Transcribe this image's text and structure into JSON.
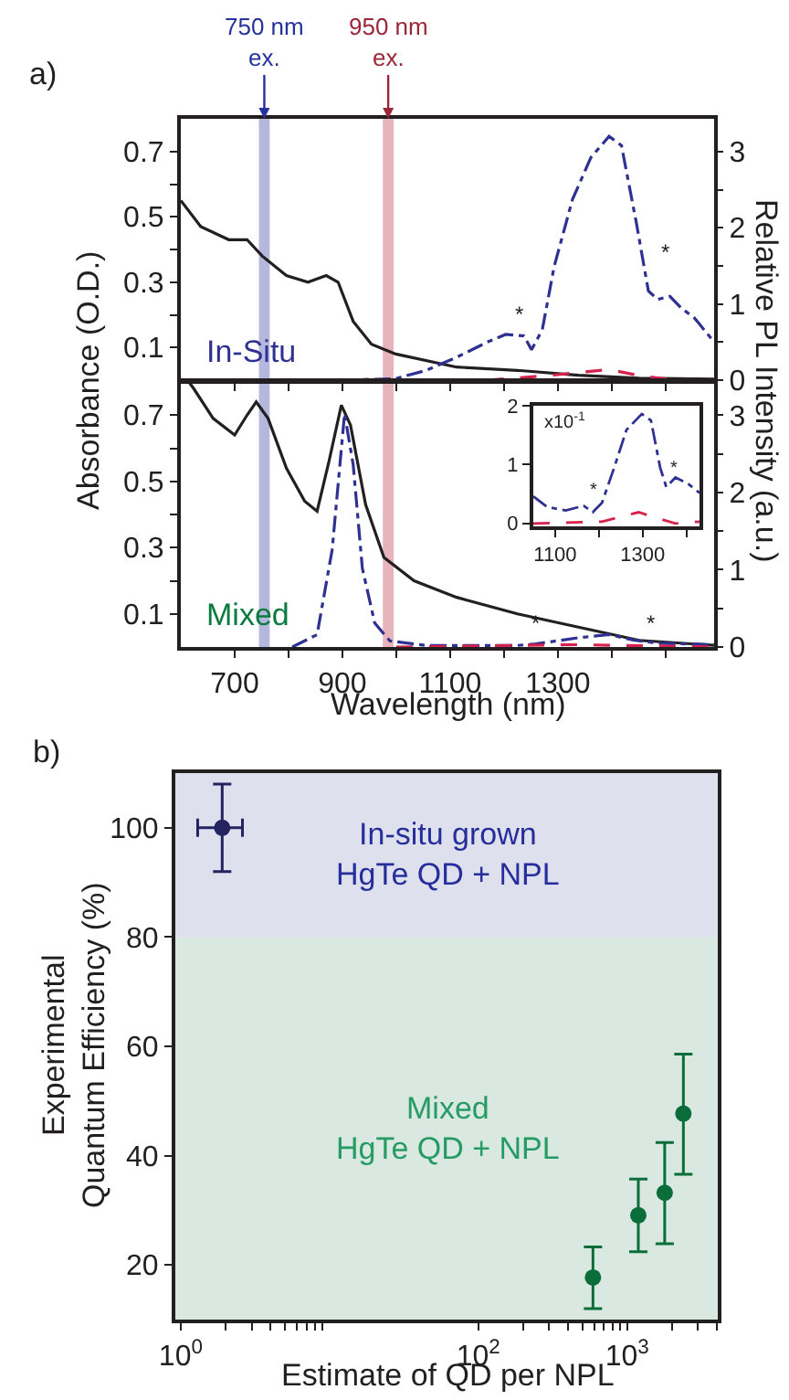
{
  "chart_data": [
    {
      "type": "line",
      "ylabel": "Absorbance (O.D.)",
      "y2label": "Relative PL Intensity (a.u.)",
      "tick_labels": "y",
      "annotations": [
        "a)",
        "In-Situ",
        "*",
        "*"
      ],
      "xlim": [
        600,
        1590
      ],
      "xticks": [
        700,
        {
          "value": 800,
          "label": null
        },
        900,
        {
          "value": 1000,
          "label": null
        },
        1100,
        {
          "value": 1200,
          "label": null
        },
        1300,
        {
          "value": 1400,
          "label": null
        },
        {
          "value": 1500,
          "label": null
        }
      ],
      "ylim": [
        0,
        0.8
      ],
      "yticks": [
        0.1,
        {
          "value": 0.2,
          "label": null
        },
        0.3,
        {
          "value": 0.4,
          "label": null
        },
        0.5,
        {
          "value": 0.6,
          "label": null
        },
        0.7
      ],
      "y2lim": [
        0,
        3.43
      ],
      "y2ticks": [
        0,
        {
          "value": 0.5,
          "label": null
        },
        1,
        {
          "value": 1.5,
          "label": null
        },
        2,
        {
          "value": 2.5,
          "label": null
        },
        3
      ],
      "bands": [
        {
          "axis": "x",
          "from": 745,
          "to": 765,
          "color": "#b4b8dc",
          "label": "750 nm\nex."
        },
        {
          "axis": "x",
          "from": 975,
          "to": 995,
          "color": "#e8b4bc",
          "label": "950 nm\nex."
        }
      ],
      "series": [
        {
          "color": "#231f20",
          "line_style": "solid",
          "x": [
            600,
            637,
            689,
            723,
            751,
            796,
            836,
            870,
            892,
            920,
            954,
            999,
            1112,
            1225,
            1338,
            1451,
            1590
          ],
          "values": [
            0.55,
            0.47,
            0.43,
            0.43,
            0.38,
            0.32,
            0.3,
            0.32,
            0.3,
            0.18,
            0.11,
            0.08,
            0.04,
            0.03,
            0.015,
            0.006,
            0.003
          ]
        },
        {
          "color": "#2e3192",
          "axis": "y2",
          "line_style": "dashdot",
          "x": [
            898,
            999,
            1056,
            1112,
            1169,
            1203,
            1237,
            1251,
            1271,
            1293,
            1327,
            1361,
            1395,
            1418,
            1446,
            1468,
            1485,
            1508,
            1530,
            1553,
            1590
          ],
          "values": [
            0,
            0.02,
            0.13,
            0.3,
            0.5,
            0.6,
            0.58,
            0.4,
            0.66,
            1.49,
            2.37,
            2.92,
            3.2,
            3.08,
            2.05,
            1.17,
            1.06,
            1.1,
            0.94,
            0.82,
            0.5
          ]
        },
        {
          "color": "#d6204d",
          "axis": "y2",
          "line_style": "dashed",
          "x": [
            1169,
            1282,
            1395,
            1451,
            1508,
            1590
          ],
          "values": [
            0,
            0.06,
            0.14,
            0.06,
            0.01,
            0
          ]
        }
      ]
    },
    {
      "type": "line",
      "xlabel": "Wavelength (nm)",
      "annotations": [
        "Mixed",
        "*",
        "*"
      ],
      "xlim": [
        600,
        1590
      ],
      "xticks": [
        700,
        {
          "value": 800,
          "label": null
        },
        900,
        {
          "value": 1000,
          "label": null
        },
        1100,
        {
          "value": 1200,
          "label": null
        },
        1300,
        {
          "value": 1400,
          "label": null
        },
        {
          "value": 1500,
          "label": null
        }
      ],
      "ylim": [
        0,
        0.8
      ],
      "yticks": [
        0.1,
        {
          "value": 0.2,
          "label": null
        },
        0.3,
        {
          "value": 0.4,
          "label": null
        },
        0.5,
        {
          "value": 0.6,
          "label": null
        },
        0.7
      ],
      "y2lim": [
        0,
        3.43
      ],
      "y2ticks": [
        0,
        {
          "value": 0.5,
          "label": null
        },
        1,
        {
          "value": 1.5,
          "label": null
        },
        2,
        {
          "value": 2.5,
          "label": null
        },
        3
      ],
      "bands": [
        {
          "axis": "x",
          "from": 745,
          "to": 765,
          "color": "#b4b8dc"
        },
        {
          "axis": "x",
          "from": 975,
          "to": 995,
          "color": "#e8b4bc"
        }
      ],
      "series": [
        {
          "color": "#231f20",
          "line_style": "solid",
          "x": [
            615,
            624,
            660,
            700,
            723,
            740,
            762,
            796,
            830,
            853,
            875,
            898,
            915,
            943,
            977,
            1033,
            1112,
            1225,
            1338,
            1451,
            1590
          ],
          "values": [
            0.8,
            0.78,
            0.69,
            0.64,
            0.7,
            0.74,
            0.69,
            0.54,
            0.44,
            0.41,
            0.56,
            0.73,
            0.67,
            0.43,
            0.27,
            0.2,
            0.15,
            0.1,
            0.06,
            0.02,
            0.005
          ]
        },
        {
          "color": "#2e3192",
          "axis": "y2",
          "line_style": "dashdot",
          "x": [
            807,
            853,
            881,
            904,
            920,
            937,
            960,
            988,
            1056,
            1225,
            1259,
            1338,
            1395,
            1440,
            1485,
            1590
          ],
          "values": [
            0,
            0.16,
            1.26,
            3.02,
            2.36,
            1.02,
            0.31,
            0.08,
            0.02,
            0.02,
            0.04,
            0.12,
            0.16,
            0.09,
            0.05,
            0.03
          ]
        },
        {
          "color": "#d6204d",
          "axis": "y2",
          "line_style": "dashed",
          "x": [
            1000,
            1340,
            1590
          ],
          "values": [
            0,
            0.03,
            0
          ]
        }
      ]
    },
    {
      "type": "line",
      "annotations": [
        "x10$^{-1}$",
        "*",
        "*"
      ],
      "xlim": [
        1050,
        1430
      ],
      "xticks": [
        1100,
        {
          "value": 1200,
          "label": null
        },
        1300,
        {
          "value": 1400,
          "label": null
        }
      ],
      "ylim": [
        -0.05,
        2
      ],
      "yticks": [
        0,
        1,
        2
      ],
      "series": [
        {
          "color": "#2e3192",
          "line_style": "dashdot",
          "x": [
            1050,
            1082,
            1124,
            1165,
            1186,
            1207,
            1235,
            1263,
            1298,
            1319,
            1340,
            1354,
            1375,
            1403,
            1430
          ],
          "values": [
            0.46,
            0.28,
            0.22,
            0.3,
            0.19,
            0.35,
            0.95,
            1.59,
            1.86,
            1.75,
            0.95,
            0.62,
            0.78,
            0.68,
            0.52
          ]
        },
        {
          "color": "#d6204d",
          "line_style": "dashed",
          "x": [
            1050,
            1207,
            1291,
            1333,
            1375,
            1430
          ],
          "values": [
            0,
            0.03,
            0.19,
            0.09,
            0,
            0.03
          ]
        }
      ]
    },
    {
      "type": "scatter",
      "marker": "circle",
      "log": "x",
      "ylabel": "Experimental\nQuantum Efficiency (%)",
      "xlabel": "Estimate of QD per NPL",
      "annotations": [
        "b)"
      ],
      "xlim": [
        0.92,
        4070
      ],
      "xticks": [
        {
          "value": 1,
          "label": "10$^{0}$"
        },
        {
          "value": 2,
          "label": null
        },
        {
          "value": 3,
          "label": null
        },
        {
          "value": 4,
          "label": null
        },
        {
          "value": 5,
          "label": null
        },
        {
          "value": 6,
          "label": null
        },
        {
          "value": 7,
          "label": null
        },
        {
          "value": 8,
          "label": null
        },
        {
          "value": 9,
          "label": null
        },
        {
          "value": 100,
          "label": "10$^{2}$"
        },
        {
          "value": 200,
          "label": null
        },
        {
          "value": 300,
          "label": null
        },
        {
          "value": 400,
          "label": null
        },
        {
          "value": 500,
          "label": null
        },
        {
          "value": 600,
          "label": null
        },
        {
          "value": 700,
          "label": null
        },
        {
          "value": 800,
          "label": null
        },
        {
          "value": 900,
          "label": null
        },
        {
          "value": 1000,
          "label": "10$^{3}$"
        },
        {
          "value": 2000,
          "label": null
        },
        {
          "value": 3000,
          "label": null
        },
        {
          "value": 4000,
          "label": null
        }
      ],
      "ylim": [
        10,
        110
      ],
      "yticks": [
        20,
        40,
        60,
        80,
        100
      ],
      "bands": [
        {
          "axis": "y",
          "from": 80,
          "to": 110,
          "color": "#dfe0ee",
          "label": "In-situ grown\nHgTe QD + NPL"
        },
        {
          "axis": "y",
          "from": 10,
          "to": 80,
          "color": "#d9e8e1",
          "label": "Mixed\nHgTe QD + NPL"
        }
      ],
      "series": [
        {
          "color": "#23235f",
          "x": [
            1.9
          ],
          "values": [
            100
          ],
          "errors": [
            [
              92,
              108
            ]
          ],
          "xerrors": [
            [
              1.3,
              2.6
            ]
          ]
        },
        {
          "color": "#0b6e3a",
          "x": [
            590,
            1190,
            1790,
            2390
          ],
          "values": [
            17.7,
            29.1,
            33.2,
            47.7
          ],
          "errors": [
            [
              12,
              23.3
            ],
            [
              22.4,
              35.7
            ],
            [
              23.9,
              42.4
            ],
            [
              36.6,
              58.6
            ]
          ]
        }
      ]
    }
  ]
}
